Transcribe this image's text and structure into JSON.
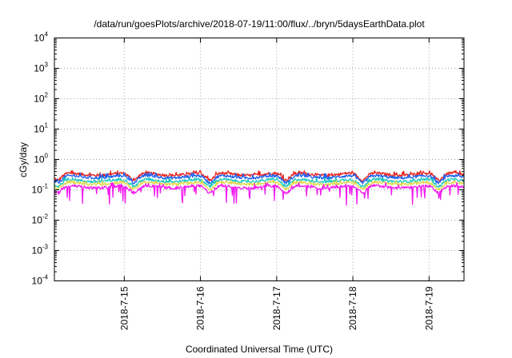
{
  "chart_data": {
    "type": "line",
    "title": "/data/run/goesPlots/archive/2018-07-19/11:00/flux/../bryn/5daysEarthData.plot",
    "xlabel": "Coordinated Universal Time (UTC)",
    "ylabel": "cGy/day",
    "x_range": [
      "2018-07-14 02:00",
      "2018-07-19 11:00"
    ],
    "y_scale": "log",
    "y_range": [
      0.0001,
      10000
    ],
    "y_ticks": [
      {
        "base": "10",
        "exp": "-4",
        "value": 0.0001
      },
      {
        "base": "10",
        "exp": "-3",
        "value": 0.001
      },
      {
        "base": "10",
        "exp": "-2",
        "value": 0.01
      },
      {
        "base": "10",
        "exp": "-1",
        "value": 0.1
      },
      {
        "base": "10",
        "exp": "0",
        "value": 1
      },
      {
        "base": "10",
        "exp": "1",
        "value": 10
      },
      {
        "base": "10",
        "exp": "2",
        "value": 100
      },
      {
        "base": "10",
        "exp": "3",
        "value": 1000
      },
      {
        "base": "10",
        "exp": "4",
        "value": 10000
      }
    ],
    "x_ticks": [
      {
        "label": "2018-7-15",
        "date": "2018-07-15"
      },
      {
        "label": "2018-7-16",
        "date": "2018-07-16"
      },
      {
        "label": "2018-7-17",
        "date": "2018-07-17"
      },
      {
        "label": "2018-7-18",
        "date": "2018-07-18"
      },
      {
        "label": "2018-7-19",
        "date": "2018-07-19"
      }
    ],
    "grid": true,
    "legend": "none",
    "dip_times": [
      "2018-07-14 03:00",
      "2018-07-15 03:00",
      "2018-07-16 03:00",
      "2018-07-17 03:00",
      "2018-07-18 03:00",
      "2018-07-19 03:00"
    ],
    "series": [
      {
        "color": "#e8231e",
        "typical": 0.34,
        "peak": 0.42,
        "dip_min": 0.18
      },
      {
        "color": "#1f5ff0",
        "typical": 0.28,
        "peak": 0.36,
        "dip_min": 0.15
      },
      {
        "color": "#1cc8c0",
        "typical": 0.21,
        "peak": 0.25,
        "dip_min": 0.12
      },
      {
        "color": "#e0d84a",
        "typical": 0.17,
        "peak": 0.2,
        "dip_min": 0.1
      },
      {
        "color": "#f21cf0",
        "typical": 0.13,
        "peak": 0.17,
        "dip_min": 0.03
      }
    ]
  }
}
